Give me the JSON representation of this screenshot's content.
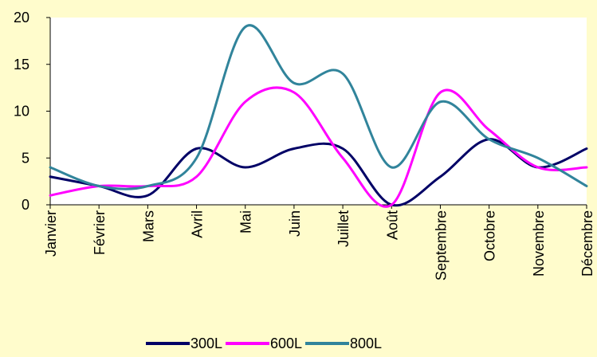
{
  "chart_data": {
    "type": "line",
    "smooth": true,
    "categories": [
      "Janvier",
      "Février",
      "Mars",
      "Avril",
      "Mai",
      "Juin",
      "Juillet",
      "Août",
      "Septembre",
      "Octobre",
      "Novembre",
      "Décembre"
    ],
    "series": [
      {
        "name": "300L",
        "color": "#000066",
        "values": [
          3,
          2,
          1,
          6,
          4,
          6,
          6,
          0,
          3,
          7,
          4,
          6
        ]
      },
      {
        "name": "600L",
        "color": "#ff00ff",
        "values": [
          1,
          2,
          2,
          3,
          11,
          12,
          5,
          0,
          12,
          8,
          4,
          4
        ]
      },
      {
        "name": "800L",
        "color": "#31849b",
        "values": [
          4,
          2,
          2,
          5,
          19,
          13,
          14,
          4,
          11,
          7,
          5,
          2
        ]
      }
    ],
    "ylim": [
      0,
      20
    ],
    "yticks": [
      0,
      5,
      10,
      15,
      20
    ],
    "grid": false,
    "legend_position": "bottom",
    "background": "#fffccc",
    "plot_background": "#ffffff"
  }
}
